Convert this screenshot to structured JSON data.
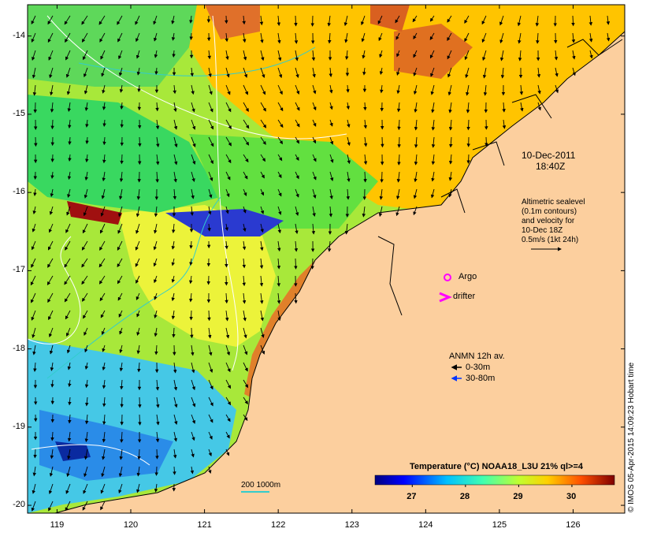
{
  "map": {
    "date": "10-Dec-2011",
    "time": "18:40Z",
    "y_ticks": [
      "-14",
      "-15",
      "-16",
      "-17",
      "-18",
      "-19",
      "-20"
    ],
    "x_ticks": [
      "119",
      "120",
      "121",
      "122",
      "123",
      "124",
      "125",
      "126"
    ],
    "lon_range": [
      118.6,
      126.7
    ],
    "lat_range": [
      -20.1,
      -13.6
    ],
    "colors": {
      "land": "#fccf9e",
      "ocean_missing": "#ffffff",
      "argo": "#ff00ff",
      "drifter": "#ff00ff",
      "adcp_shallow": "#000000",
      "adcp_deep": "#0033ff",
      "contour_200_1000": "#33cccc"
    }
  },
  "altimetry": {
    "line1": "Altimetric sealevel",
    "line2": "(0.1m contours)",
    "line3": "and velocity for",
    "line4": "10-Dec 18Z",
    "line5": "0.5m/s (1kt 24h)"
  },
  "legend": {
    "argo": "Argo",
    "drifter": "drifter",
    "anmn_title": "ANMN 12h av.",
    "anmn_shallow": "0-30m",
    "anmn_deep": "30-80m",
    "isobath": "200  1000m"
  },
  "colorbar": {
    "title": "Temperature (°C) NOAA18_L3U 21% ql>=4",
    "ticks": [
      "27",
      "28",
      "29",
      "30"
    ],
    "tick_values": [
      27,
      28,
      29,
      30
    ],
    "range": [
      26.3,
      30.8
    ]
  },
  "credit": "© IMOS 05-Apr-2015 14:09:23 Hobart time"
}
